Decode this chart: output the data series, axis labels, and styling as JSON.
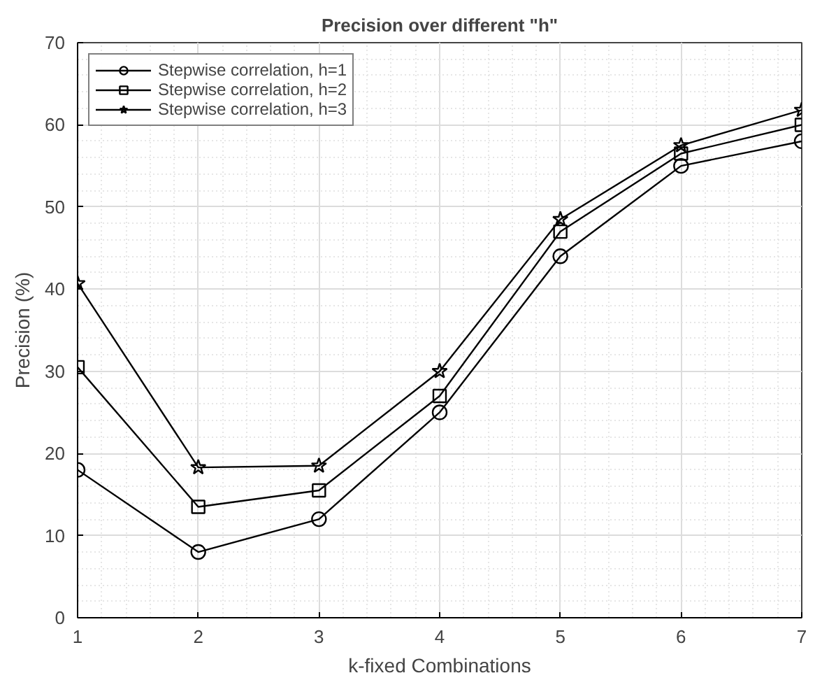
{
  "chart_data": {
    "type": "line",
    "title": "Precision over different \"h\"",
    "xlabel": "k-fixed Combinations",
    "ylabel": "Precision (%)",
    "x": [
      1,
      2,
      3,
      4,
      5,
      6,
      7
    ],
    "series": [
      {
        "name": "Stepwise correlation, h=1",
        "color": "#000000",
        "marker": "circle",
        "values": [
          18,
          8,
          12,
          25,
          44,
          55,
          58
        ]
      },
      {
        "name": "Stepwise correlation, h=2",
        "color": "#000000",
        "marker": "square",
        "values": [
          30.5,
          13.5,
          15.5,
          27,
          47,
          56.5,
          60
        ]
      },
      {
        "name": "Stepwise correlation, h=3",
        "color": "#000000",
        "marker": "star",
        "values": [
          40.7,
          18.3,
          18.5,
          30,
          48.5,
          57.5,
          61.8
        ]
      }
    ],
    "xlim": [
      1,
      7
    ],
    "xticks": [
      1,
      2,
      3,
      4,
      5,
      6,
      7
    ],
    "ylim": [
      0,
      70
    ],
    "yticks": [
      0,
      10,
      20,
      30,
      40,
      50,
      60,
      70
    ],
    "grid": true,
    "legend": "top left",
    "line_style": "solid"
  }
}
